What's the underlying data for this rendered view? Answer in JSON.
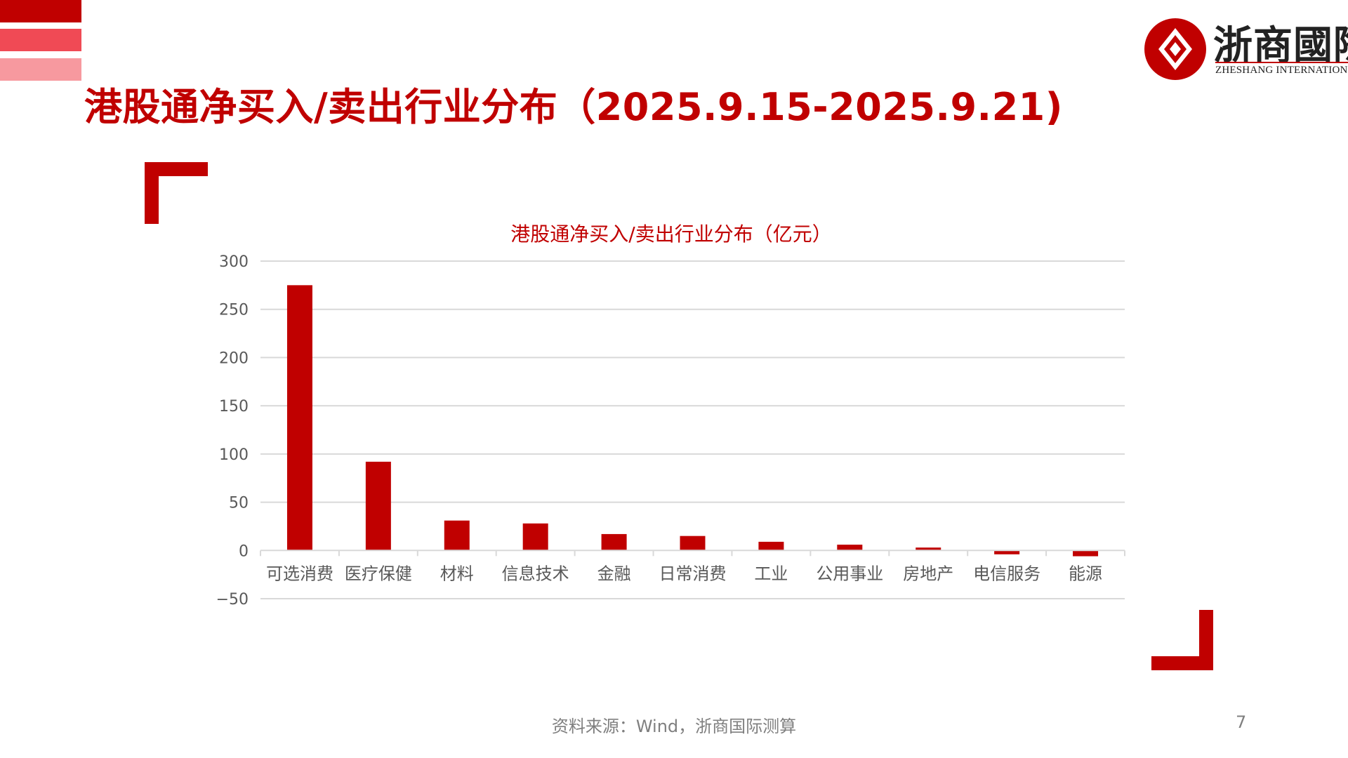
{
  "page": {
    "title": "港股通净买入/卖出行业分布（2025.9.15-2025.9.21)",
    "source": "资料来源：Wind，浙商国际测算",
    "page_number": "7"
  },
  "logo": {
    "name_cn": "浙商國際",
    "name_en": "ZHESHANG INTERNATIONAL"
  },
  "colors": {
    "accent": "#c00000",
    "stripe_mid": "#f04a55",
    "stripe_light": "#f7999f",
    "grid": "#d9d9d9",
    "axis_text": "#595959"
  },
  "chart_data": {
    "type": "bar",
    "title": "港股通净买入/卖出行业分布（亿元）",
    "categories": [
      "可选消费",
      "医疗保健",
      "材料",
      "信息技术",
      "金融",
      "日常消费",
      "工业",
      "公用事业",
      "房地产",
      "电信服务",
      "能源"
    ],
    "values": [
      275,
      92,
      31,
      28,
      17,
      15,
      9,
      6,
      3,
      -4,
      -6
    ],
    "ylim": [
      -50,
      300
    ],
    "yticks": [
      -50,
      0,
      50,
      100,
      150,
      200,
      250,
      300
    ],
    "ytick_labels": [
      "−50",
      "0",
      "50",
      "100",
      "150",
      "200",
      "250",
      "300"
    ],
    "grid": true,
    "legend": "none",
    "bar_color": "#c00000"
  }
}
